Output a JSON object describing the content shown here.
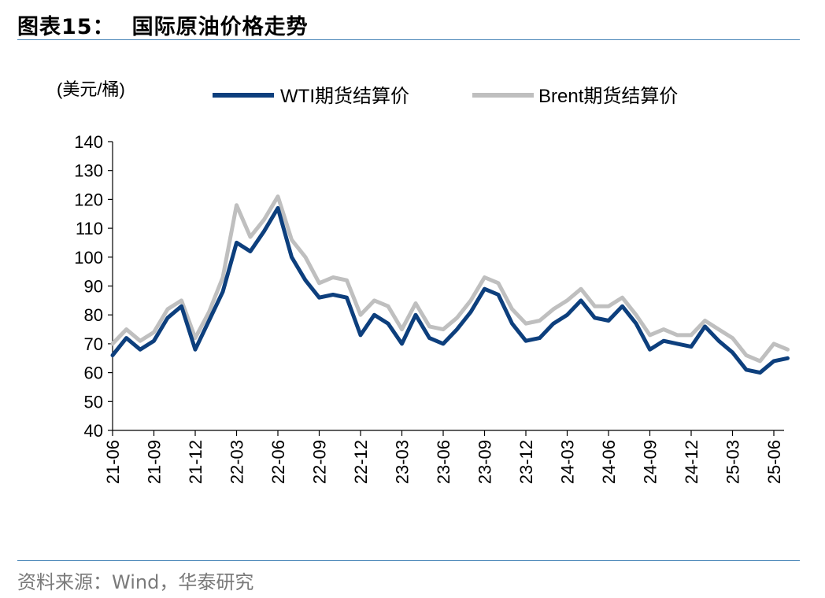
{
  "header": {
    "label": "图表15：",
    "title": "国际原油价格走势"
  },
  "footer": {
    "source": "资料来源：Wind，华泰研究"
  },
  "colors": {
    "wti": "#0d3f7d",
    "brent": "#bfbfbf",
    "rule": "#4a86b8"
  },
  "chart_data": {
    "type": "line",
    "ylabel": "(美元/桶)",
    "ylim": [
      40,
      140
    ],
    "yticks": [
      40,
      50,
      60,
      70,
      80,
      90,
      100,
      110,
      120,
      130,
      140
    ],
    "xticks": [
      "21-06",
      "21-09",
      "21-12",
      "22-03",
      "22-06",
      "22-09",
      "22-12",
      "23-03",
      "23-06",
      "23-09",
      "23-12",
      "24-03",
      "24-06",
      "24-09",
      "24-12",
      "25-03",
      "25-06"
    ],
    "legend": "top",
    "series": [
      {
        "name": "WTI期货结算价",
        "points": [
          [
            "21-06",
            66
          ],
          [
            "21-07",
            72
          ],
          [
            "21-08",
            68
          ],
          [
            "21-09",
            71
          ],
          [
            "21-10",
            79
          ],
          [
            "21-11",
            83
          ],
          [
            "21-12",
            68
          ],
          [
            "22-01",
            78
          ],
          [
            "22-02",
            88
          ],
          [
            "22-03",
            105
          ],
          [
            "22-04",
            102
          ],
          [
            "22-05",
            109
          ],
          [
            "22-06",
            117
          ],
          [
            "22-07",
            100
          ],
          [
            "22-08",
            92
          ],
          [
            "22-09",
            86
          ],
          [
            "22-10",
            87
          ],
          [
            "22-11",
            86
          ],
          [
            "22-12",
            73
          ],
          [
            "23-01",
            80
          ],
          [
            "23-02",
            77
          ],
          [
            "23-03",
            70
          ],
          [
            "23-04",
            80
          ],
          [
            "23-05",
            72
          ],
          [
            "23-06",
            70
          ],
          [
            "23-07",
            75
          ],
          [
            "23-08",
            81
          ],
          [
            "23-09",
            89
          ],
          [
            "23-10",
            87
          ],
          [
            "23-11",
            77
          ],
          [
            "23-12",
            71
          ],
          [
            "24-01",
            72
          ],
          [
            "24-02",
            77
          ],
          [
            "24-03",
            80
          ],
          [
            "24-04",
            85
          ],
          [
            "24-05",
            79
          ],
          [
            "24-06",
            78
          ],
          [
            "24-07",
            83
          ],
          [
            "24-08",
            77
          ],
          [
            "24-09",
            68
          ],
          [
            "24-10",
            71
          ],
          [
            "24-11",
            70
          ],
          [
            "24-12",
            69
          ],
          [
            "25-01",
            76
          ],
          [
            "25-02",
            71
          ],
          [
            "25-03",
            67
          ],
          [
            "25-04",
            61
          ],
          [
            "25-05",
            60
          ],
          [
            "25-06",
            64
          ],
          [
            "25-07",
            65
          ]
        ]
      },
      {
        "name": "Brent期货结算价",
        "points": [
          [
            "21-06",
            70
          ],
          [
            "21-07",
            75
          ],
          [
            "21-08",
            71
          ],
          [
            "21-09",
            74
          ],
          [
            "21-10",
            82
          ],
          [
            "21-11",
            85
          ],
          [
            "21-12",
            72
          ],
          [
            "22-01",
            81
          ],
          [
            "22-02",
            93
          ],
          [
            "22-03",
            118
          ],
          [
            "22-04",
            107
          ],
          [
            "22-05",
            113
          ],
          [
            "22-06",
            121
          ],
          [
            "22-07",
            106
          ],
          [
            "22-08",
            100
          ],
          [
            "22-09",
            91
          ],
          [
            "22-10",
            93
          ],
          [
            "22-11",
            92
          ],
          [
            "22-12",
            80
          ],
          [
            "23-01",
            85
          ],
          [
            "23-02",
            83
          ],
          [
            "23-03",
            75
          ],
          [
            "23-04",
            84
          ],
          [
            "23-05",
            76
          ],
          [
            "23-06",
            75
          ],
          [
            "23-07",
            79
          ],
          [
            "23-08",
            85
          ],
          [
            "23-09",
            93
          ],
          [
            "23-10",
            91
          ],
          [
            "23-11",
            82
          ],
          [
            "23-12",
            77
          ],
          [
            "24-01",
            78
          ],
          [
            "24-02",
            82
          ],
          [
            "24-03",
            85
          ],
          [
            "24-04",
            89
          ],
          [
            "24-05",
            83
          ],
          [
            "24-06",
            83
          ],
          [
            "24-07",
            86
          ],
          [
            "24-08",
            80
          ],
          [
            "24-09",
            73
          ],
          [
            "24-10",
            75
          ],
          [
            "24-11",
            73
          ],
          [
            "24-12",
            73
          ],
          [
            "25-01",
            78
          ],
          [
            "25-02",
            75
          ],
          [
            "25-03",
            72
          ],
          [
            "25-04",
            66
          ],
          [
            "25-05",
            64
          ],
          [
            "25-06",
            70
          ],
          [
            "25-07",
            68
          ]
        ]
      }
    ]
  }
}
